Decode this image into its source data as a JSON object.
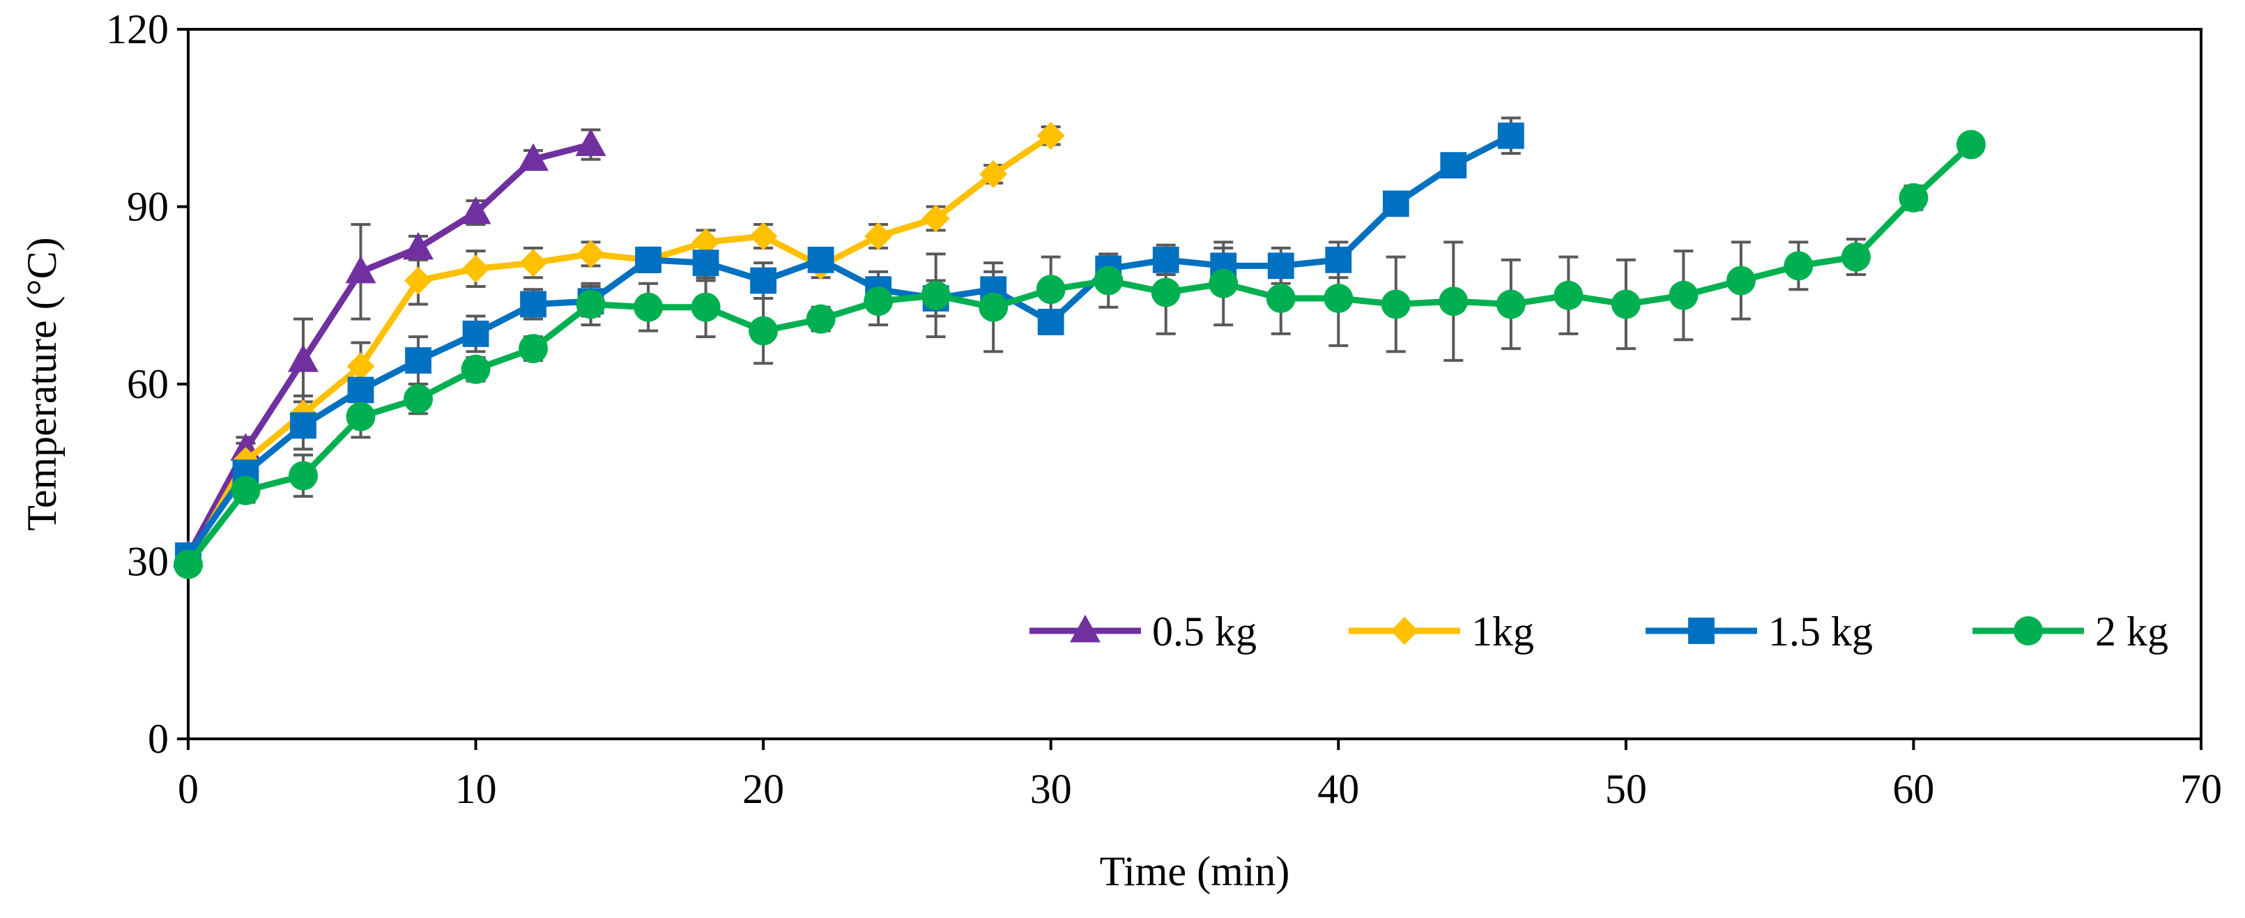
{
  "chart_data": {
    "type": "line",
    "title": "",
    "xlabel": "Time (min)",
    "ylabel": "Temperature (°C)",
    "xlim": [
      0,
      70
    ],
    "ylim": [
      0,
      120
    ],
    "xticks": [
      0,
      10,
      20,
      30,
      40,
      50,
      60,
      70
    ],
    "yticks": [
      0,
      30,
      60,
      90,
      120
    ],
    "xtick_labels": [
      "0",
      "10",
      "20",
      "30",
      "40",
      "50",
      "60",
      "70"
    ],
    "ytick_labels": [
      "0",
      "30",
      "60",
      "90",
      "120"
    ],
    "grid": false,
    "legend_position": "bottom-right",
    "series": [
      {
        "name": "0.5 kg",
        "color": "#7030A0",
        "marker": "triangle",
        "x": [
          0,
          2,
          4,
          6,
          8,
          10,
          12,
          14
        ],
        "y": [
          31,
          49,
          64,
          79,
          83,
          89,
          98,
          100.5
        ],
        "err": [
          1.5,
          2,
          7,
          8,
          2,
          2,
          1.5,
          2.5
        ]
      },
      {
        "name": "1kg",
        "color": "#FFC000",
        "marker": "diamond",
        "x": [
          0,
          2,
          4,
          6,
          8,
          10,
          12,
          14,
          16,
          18,
          20,
          22,
          24,
          26,
          28,
          30
        ],
        "y": [
          30,
          47,
          55,
          63,
          77.5,
          79.5,
          80.5,
          82,
          81,
          84,
          85,
          80,
          85,
          88,
          95.5,
          102
        ],
        "err": [
          1.5,
          3,
          3,
          4,
          4,
          3,
          2.5,
          2,
          2,
          2,
          2,
          2,
          2,
          2,
          1.5,
          1.5
        ]
      },
      {
        "name": "1.5 kg",
        "color": "#0070C0",
        "marker": "square",
        "x": [
          0,
          2,
          4,
          6,
          8,
          10,
          12,
          14,
          16,
          18,
          20,
          22,
          24,
          26,
          28,
          30,
          32,
          34,
          36,
          38,
          40,
          42,
          44,
          46
        ],
        "y": [
          31,
          45,
          53,
          59,
          64,
          68.5,
          73.5,
          74,
          81,
          80.5,
          77.5,
          81,
          76,
          74.5,
          76,
          70.5,
          79.5,
          81,
          80,
          80,
          81,
          90.5,
          97,
          102
        ],
        "err": [
          1.5,
          3,
          4,
          4.5,
          4,
          3,
          2.5,
          2.5,
          2,
          3,
          3,
          1.5,
          3,
          3,
          3,
          2,
          2,
          2.5,
          3,
          3,
          3,
          1.5,
          1.5,
          3
        ]
      },
      {
        "name": "2 kg",
        "color": "#00B050",
        "marker": "circle",
        "x": [
          0,
          2,
          4,
          6,
          8,
          10,
          12,
          14,
          16,
          18,
          20,
          22,
          24,
          26,
          28,
          30,
          32,
          34,
          36,
          38,
          40,
          42,
          44,
          46,
          48,
          50,
          52,
          54,
          56,
          58,
          60,
          62
        ],
        "y": [
          29.5,
          42,
          44.5,
          54.5,
          57.5,
          62.5,
          66,
          73.5,
          73,
          73,
          69,
          71,
          74,
          75,
          73,
          76,
          77.5,
          75.5,
          77,
          74.5,
          74.5,
          73.5,
          74,
          73.5,
          75,
          73.5,
          75,
          77.5,
          80,
          81.5,
          91.5,
          100.5
        ],
        "err": [
          1.5,
          2,
          3.5,
          3.5,
          2.5,
          2,
          2,
          3.5,
          4,
          5,
          5.5,
          2,
          4,
          7,
          7.5,
          5.5,
          4.5,
          7,
          7,
          6,
          8,
          8,
          10,
          7.5,
          6.5,
          7.5,
          7.5,
          6.5,
          4,
          3,
          2,
          1.5
        ]
      }
    ]
  }
}
